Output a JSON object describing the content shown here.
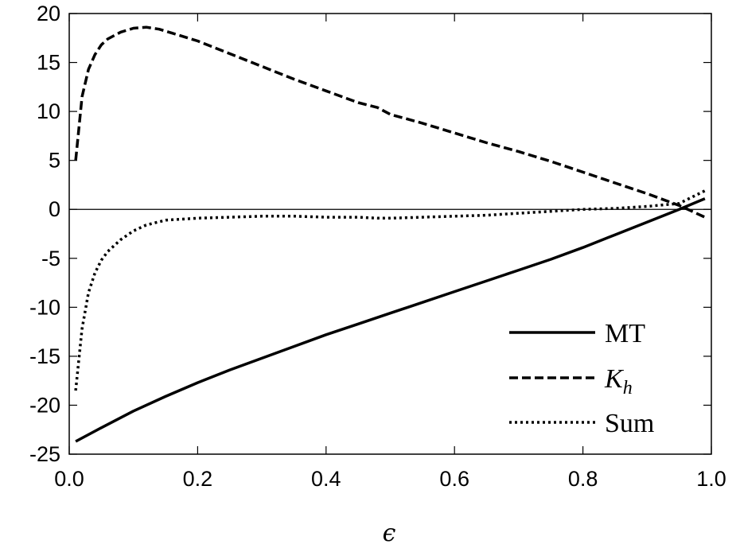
{
  "chart_data": {
    "type": "line",
    "title": "",
    "xlabel": "ϵ",
    "ylabel": "",
    "xlim": [
      0.0,
      1.0
    ],
    "ylim": [
      -25,
      20
    ],
    "xticks": [
      "0.0",
      "0.2",
      "0.4",
      "0.6",
      "0.8",
      "1.0"
    ],
    "yticks": [
      "20",
      "15",
      "10",
      "5",
      "0",
      "-5",
      "-10",
      "-15",
      "-20",
      "-25"
    ],
    "zero_line": true,
    "grid": false,
    "legend_position": "bottom-right",
    "series": [
      {
        "name": "MT",
        "label_main": "MT",
        "label_sub": "",
        "dash": "solid",
        "x": [
          0.01,
          0.05,
          0.1,
          0.15,
          0.2,
          0.25,
          0.3,
          0.35,
          0.4,
          0.45,
          0.5,
          0.55,
          0.6,
          0.65,
          0.7,
          0.75,
          0.8,
          0.85,
          0.9,
          0.95,
          0.99
        ],
        "y": [
          -23.7,
          -22.3,
          -20.6,
          -19.1,
          -17.7,
          -16.4,
          -15.2,
          -14.0,
          -12.8,
          -11.7,
          -10.6,
          -9.5,
          -8.4,
          -7.3,
          -6.2,
          -5.1,
          -3.9,
          -2.6,
          -1.3,
          0.0,
          1.1
        ]
      },
      {
        "name": "K_h",
        "label_main": "K",
        "label_sub": "h",
        "dash": "dashed",
        "x": [
          0.01,
          0.02,
          0.03,
          0.04,
          0.05,
          0.06,
          0.08,
          0.1,
          0.12,
          0.14,
          0.16,
          0.2,
          0.25,
          0.3,
          0.35,
          0.4,
          0.45,
          0.48,
          0.5,
          0.55,
          0.6,
          0.65,
          0.7,
          0.75,
          0.8,
          0.85,
          0.9,
          0.95,
          0.99
        ],
        "y": [
          5.0,
          11.5,
          14.3,
          15.8,
          16.8,
          17.4,
          18.1,
          18.5,
          18.6,
          18.4,
          18.0,
          17.2,
          15.9,
          14.6,
          13.3,
          12.1,
          10.9,
          10.4,
          9.7,
          8.8,
          7.8,
          6.8,
          5.9,
          4.9,
          3.8,
          2.7,
          1.6,
          0.4,
          -0.8
        ]
      },
      {
        "name": "Sum",
        "label_main": "Sum",
        "label_sub": "",
        "dash": "dotted",
        "x": [
          0.01,
          0.02,
          0.03,
          0.04,
          0.05,
          0.06,
          0.08,
          0.1,
          0.12,
          0.15,
          0.2,
          0.25,
          0.3,
          0.35,
          0.4,
          0.45,
          0.48,
          0.5,
          0.55,
          0.6,
          0.65,
          0.7,
          0.75,
          0.8,
          0.85,
          0.9,
          0.95,
          0.99
        ],
        "y": [
          -18.5,
          -12.2,
          -8.5,
          -6.5,
          -5.2,
          -4.3,
          -3.1,
          -2.2,
          -1.6,
          -1.1,
          -0.9,
          -0.8,
          -0.7,
          -0.7,
          -0.8,
          -0.8,
          -0.9,
          -0.9,
          -0.8,
          -0.7,
          -0.6,
          -0.4,
          -0.2,
          0.0,
          0.1,
          0.3,
          0.6,
          1.9
        ]
      }
    ]
  }
}
